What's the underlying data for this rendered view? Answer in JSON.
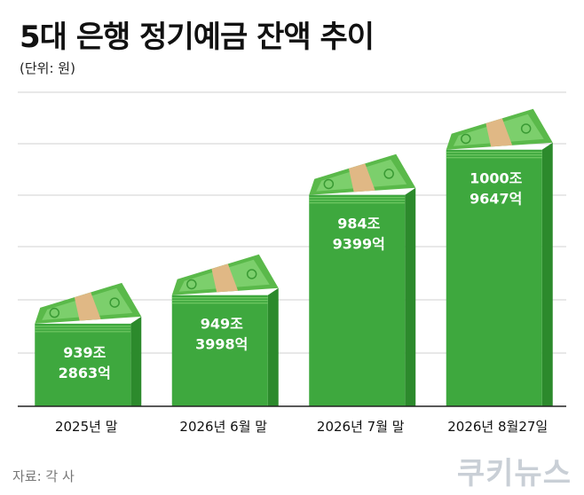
{
  "title": "5대 은행 정기예금 잔액 추이",
  "unit_label": "(단위: 원)",
  "source": "자료: 각 사",
  "watermark": "쿠키뉴스",
  "colors": {
    "bar_front": "#3ea83e",
    "bar_side": "#2c8a2c",
    "bill_light": "#7ccf6c",
    "bill_mid": "#5ab94a",
    "band": "#e0b885",
    "grid": "#d0d0d0",
    "axis": "#222222"
  },
  "icons": {
    "bar_cap": "money-stack-icon"
  },
  "chart_data": {
    "type": "bar",
    "title": "5대 은행 정기예금 잔액 추이",
    "ylabel": "(단위: 원)",
    "categories": [
      "2025년 말",
      "2026년 6월 말",
      "2026년 7월 말",
      "2026년 8월27일"
    ],
    "values": [
      9392863,
      9493998,
      9849399,
      10009647
    ],
    "value_unit": "억 원",
    "data_labels": [
      [
        "939조",
        "2863억"
      ],
      [
        "949조",
        "3998억"
      ],
      [
        "984조",
        "9399억"
      ],
      [
        "1000조",
        "9647억"
      ]
    ],
    "ylim": [
      9100000,
      10100000
    ],
    "grid": true,
    "legend": "none"
  }
}
